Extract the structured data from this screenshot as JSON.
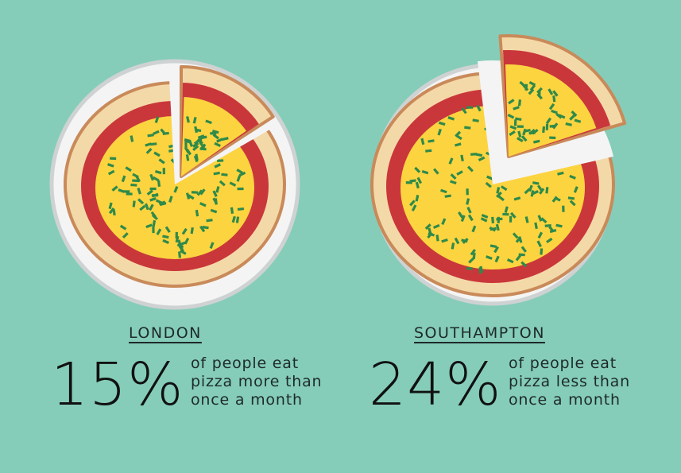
{
  "colors": {
    "background": "#85cdb9",
    "plate": "#f4f4f4",
    "plate_rim": "#cfd2d2",
    "crust_outline": "#c98a5a",
    "crust": "#f4d9a8",
    "sauce": "#c9373b",
    "cheese": "#fcd440",
    "herbs": "#2f8a4a"
  },
  "london": {
    "city": "LONDON",
    "percent": "15%",
    "line1": "of people eat",
    "line2": "pizza more than",
    "line3": "once a month"
  },
  "southampton": {
    "city": "SOUTHAMPTON",
    "percent": "24%",
    "line1": "of people eat",
    "line2": "pizza less than",
    "line3": "once a month"
  }
}
